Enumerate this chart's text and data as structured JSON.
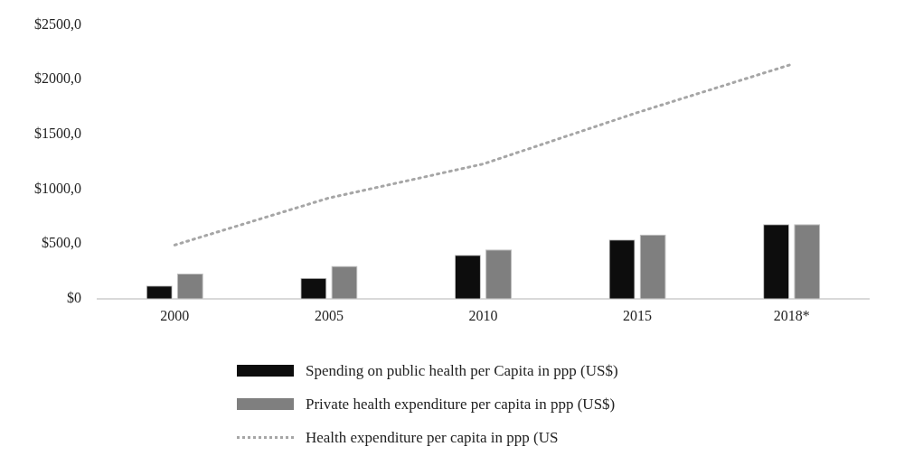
{
  "chart_data": {
    "type": "bar",
    "categories": [
      "2000",
      "2005",
      "2010",
      "2015",
      "2018*"
    ],
    "series": [
      {
        "name": "Spending on public health per Capita in ppp (US$)",
        "color": "#0d0d0d",
        "values": [
          120,
          190,
          400,
          540,
          680
        ]
      },
      {
        "name": "Private health expenditure per capita in ppp (US$)",
        "color": "#7f7f7f",
        "values": [
          230,
          300,
          450,
          585,
          680
        ]
      },
      {
        "name": "Health expenditure per capita in ppp (US",
        "type": "line",
        "color": "#a6a6a6",
        "line_style": "dotted",
        "marker": "none",
        "values": [
          490,
          920,
          1230,
          1700,
          2140
        ]
      }
    ],
    "ylim": [
      0,
      2500
    ],
    "yticks": [
      {
        "value": 0,
        "label": "$0"
      },
      {
        "value": 500,
        "label": "$500,0"
      },
      {
        "value": 1000,
        "label": "$1000,0"
      },
      {
        "value": 1500,
        "label": "$1500,0"
      },
      {
        "value": 2000,
        "label": "$2000,0"
      },
      {
        "value": 2500,
        "label": "$2500,0"
      }
    ],
    "grid": false,
    "legend": "bottom"
  }
}
